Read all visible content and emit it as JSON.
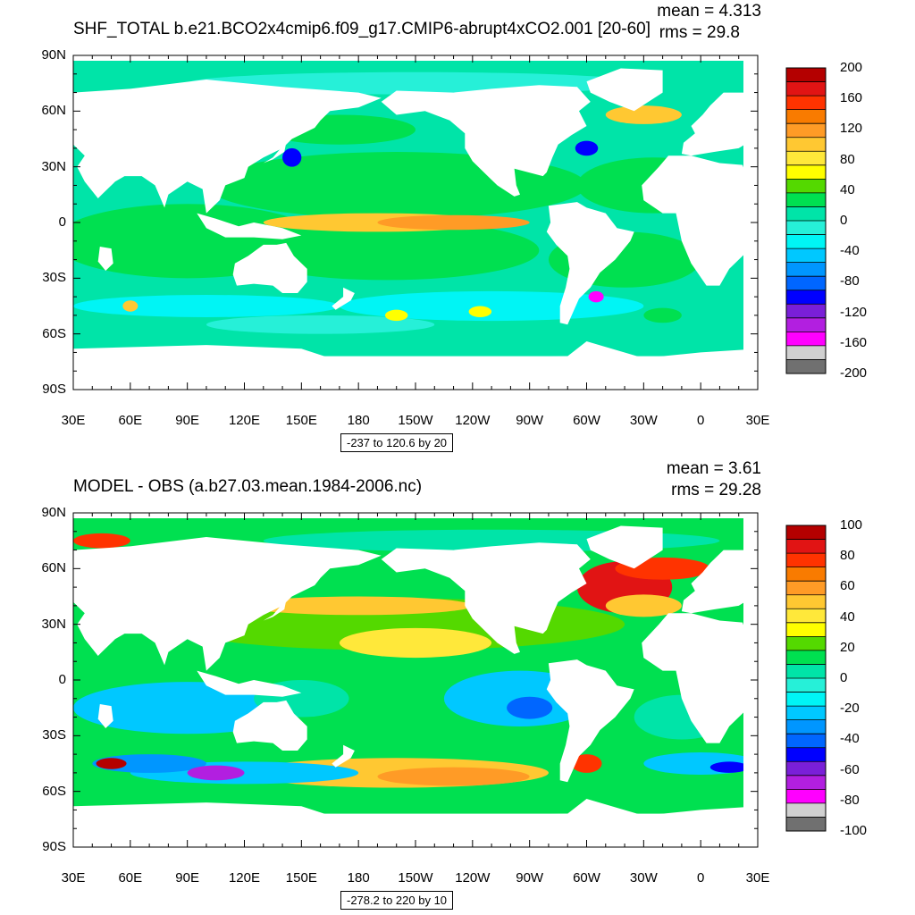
{
  "panels": [
    {
      "title": "SHF_TOTAL b.e21.BCO2x4cmip6.f09_g17.CMIP6-abrupt4xCO2.001 [20-60]",
      "mean_text": "mean = 4.313",
      "rms_text": "rms = 29.8",
      "contour_info": "-237 to 120.6 by 20",
      "colorbar_labels": [
        "200",
        "160",
        "120",
        "80",
        "40",
        "0",
        "-40",
        "-80",
        "-120",
        "-160",
        "-200"
      ],
      "colorbar_colors": [
        "#b40000",
        "#e11414",
        "#ff3300",
        "#f97b00",
        "#ff9b26",
        "#ffc832",
        "#ffe83a",
        "#ffff00",
        "#54d900",
        "#00e050",
        "#00e4a8",
        "#26f0d8",
        "#00f5f5",
        "#00c8ff",
        "#0096ff",
        "#0066ff",
        "#0000ff",
        "#7a1fd8",
        "#b21fe0",
        "#ff00ff",
        "#d0d0d0",
        "#707070"
      ]
    },
    {
      "title": "MODEL - OBS (a.b27.03.mean.1984-2006.nc)",
      "mean_text": "mean = 3.61",
      "rms_text": "rms = 29.28",
      "contour_info": "-278.2 to 220 by 10",
      "colorbar_labels": [
        "100",
        "80",
        "60",
        "40",
        "20",
        "0",
        "-20",
        "-40",
        "-60",
        "-80",
        "-100"
      ],
      "colorbar_colors": [
        "#b40000",
        "#e11414",
        "#ff3300",
        "#f97b00",
        "#ff9b26",
        "#ffc832",
        "#ffe83a",
        "#ffff00",
        "#54d900",
        "#00e050",
        "#00e4a8",
        "#26f0d8",
        "#00f5f5",
        "#00c8ff",
        "#0096ff",
        "#0066ff",
        "#0000ff",
        "#7a1fd8",
        "#b21fe0",
        "#ff00ff",
        "#d0d0d0",
        "#707070"
      ]
    }
  ],
  "chart_data": [
    {
      "type": "heatmap",
      "title": "SHF_TOTAL b.e21.BCO2x4cmip6.f09_g17.CMIP6-abrupt4xCO2.001 [20-60]",
      "y_ticks": [
        "90N",
        "60N",
        "30N",
        "0",
        "30S",
        "60S",
        "90S"
      ],
      "x_ticks": [
        "30E",
        "60E",
        "90E",
        "120E",
        "150E",
        "180",
        "150W",
        "120W",
        "90W",
        "60W",
        "30W",
        "0",
        "30E"
      ],
      "xlim": [
        30,
        390
      ],
      "ylim": [
        -90,
        90
      ],
      "colorbar_range": [
        -200,
        200
      ],
      "colorbar_ticks": [
        200,
        160,
        120,
        80,
        40,
        0,
        -40,
        -80,
        -120,
        -160,
        -200
      ],
      "mean": 4.313,
      "rms": 29.8,
      "contour_min": -237,
      "contour_max": 120.6,
      "contour_interval": 20
    },
    {
      "type": "heatmap",
      "title": "MODEL - OBS (a.b27.03.mean.1984-2006.nc)",
      "y_ticks": [
        "90N",
        "60N",
        "30N",
        "0",
        "30S",
        "60S",
        "90S"
      ],
      "x_ticks": [
        "30E",
        "60E",
        "90E",
        "120E",
        "150E",
        "180",
        "150W",
        "120W",
        "90W",
        "60W",
        "30W",
        "0",
        "30E"
      ],
      "xlim": [
        30,
        390
      ],
      "ylim": [
        -90,
        90
      ],
      "colorbar_range": [
        -100,
        100
      ],
      "colorbar_ticks": [
        100,
        80,
        60,
        40,
        20,
        0,
        -20,
        -40,
        -60,
        -80,
        -100
      ],
      "mean": 3.61,
      "rms": 29.28,
      "contour_min": -278.2,
      "contour_max": 220,
      "contour_interval": 10
    }
  ],
  "colors": {
    "ocean_neutral": "#00e4a8",
    "ocean_positive": "#54d900",
    "ocean_cold": "#26f0d8",
    "land": "#ffffff"
  }
}
